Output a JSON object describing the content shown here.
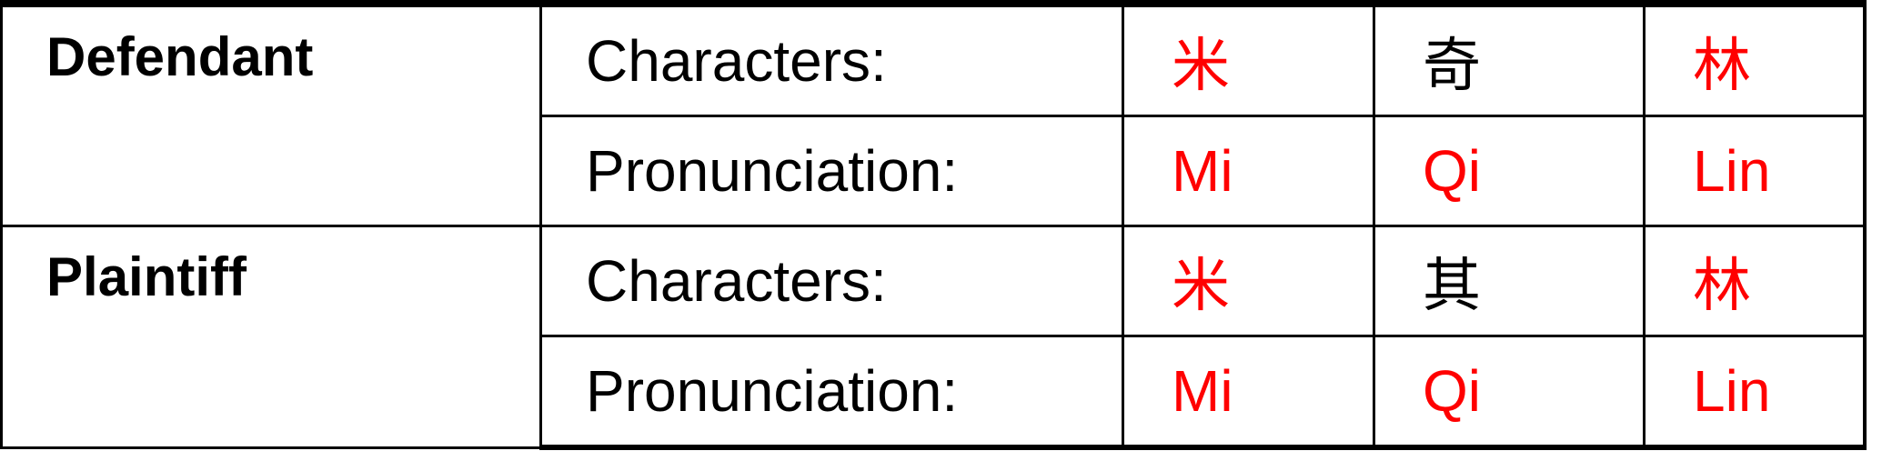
{
  "colors": {
    "highlight": "#ff0000",
    "text": "#000000"
  },
  "rows": [
    {
      "party": "Defendant",
      "characters_label": "Characters:",
      "characters": [
        {
          "text": "米",
          "highlight": true
        },
        {
          "text": "奇",
          "highlight": false
        },
        {
          "text": "林",
          "highlight": true
        }
      ],
      "pronunciation_label": "Pronunciation:",
      "pronunciation": [
        {
          "text": "Mi",
          "highlight": true
        },
        {
          "text": "Qi",
          "highlight": true
        },
        {
          "text": "Lin",
          "highlight": true
        }
      ]
    },
    {
      "party": "Plaintiff",
      "characters_label": "Characters:",
      "characters": [
        {
          "text": "米",
          "highlight": true
        },
        {
          "text": "其",
          "highlight": false
        },
        {
          "text": "林",
          "highlight": true
        }
      ],
      "pronunciation_label": "Pronunciation:",
      "pronunciation": [
        {
          "text": "Mi",
          "highlight": true
        },
        {
          "text": "Qi",
          "highlight": true
        },
        {
          "text": "Lin",
          "highlight": true
        }
      ]
    }
  ]
}
